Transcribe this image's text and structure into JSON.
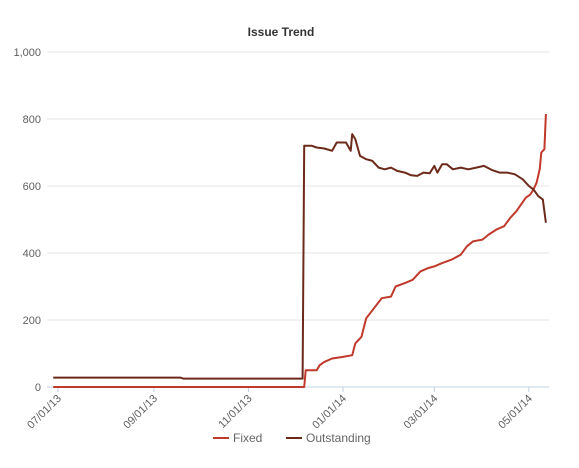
{
  "chart_data": {
    "type": "line",
    "title": "Issue Trend",
    "xlabel": "",
    "ylabel": "",
    "ylim": [
      0,
      1000
    ],
    "yticks": [
      "0",
      "200",
      "400",
      "600",
      "800",
      "1,000"
    ],
    "xticks": [
      "07/01/13",
      "09/01/13",
      "11/01/13",
      "01/01/14",
      "03/01/14",
      "05/01/14"
    ],
    "xlim": [
      "2013-06-24",
      "2014-05-14"
    ],
    "grid": "horizontal",
    "legend_position": "bottom",
    "series": [
      {
        "name": "Fixed",
        "color": "#c0392b",
        "points": [
          [
            "2013-06-28",
            0
          ],
          [
            "2013-12-07",
            0
          ],
          [
            "2013-12-08",
            50
          ],
          [
            "2013-12-15",
            50
          ],
          [
            "2013-12-17",
            65
          ],
          [
            "2013-12-20",
            75
          ],
          [
            "2013-12-25",
            85
          ],
          [
            "2014-01-01",
            90
          ],
          [
            "2014-01-07",
            95
          ],
          [
            "2014-01-09",
            130
          ],
          [
            "2014-01-13",
            150
          ],
          [
            "2014-01-16",
            205
          ],
          [
            "2014-01-21",
            235
          ],
          [
            "2014-01-26",
            265
          ],
          [
            "2014-02-01",
            270
          ],
          [
            "2014-02-04",
            300
          ],
          [
            "2014-02-10",
            310
          ],
          [
            "2014-02-15",
            320
          ],
          [
            "2014-02-20",
            345
          ],
          [
            "2014-02-25",
            355
          ],
          [
            "2014-03-01",
            360
          ],
          [
            "2014-03-06",
            370
          ],
          [
            "2014-03-12",
            380
          ],
          [
            "2014-03-18",
            395
          ],
          [
            "2014-03-22",
            420
          ],
          [
            "2014-03-26",
            435
          ],
          [
            "2014-04-01",
            440
          ],
          [
            "2014-04-05",
            455
          ],
          [
            "2014-04-10",
            470
          ],
          [
            "2014-04-15",
            480
          ],
          [
            "2014-04-19",
            505
          ],
          [
            "2014-04-23",
            525
          ],
          [
            "2014-04-26",
            545
          ],
          [
            "2014-04-29",
            565
          ],
          [
            "2014-05-02",
            575
          ],
          [
            "2014-05-04",
            590
          ],
          [
            "2014-05-06",
            610
          ],
          [
            "2014-05-08",
            650
          ],
          [
            "2014-05-09",
            700
          ],
          [
            "2014-05-11",
            710
          ],
          [
            "2014-05-12",
            815
          ]
        ]
      },
      {
        "name": "Outstanding",
        "color": "#6b2a1a",
        "points": [
          [
            "2013-06-28",
            28
          ],
          [
            "2013-09-18",
            28
          ],
          [
            "2013-09-20",
            25
          ],
          [
            "2013-12-06",
            25
          ],
          [
            "2013-12-07",
            720
          ],
          [
            "2013-12-12",
            720
          ],
          [
            "2013-12-15",
            715
          ],
          [
            "2013-12-20",
            712
          ],
          [
            "2013-12-25",
            705
          ],
          [
            "2013-12-28",
            730
          ],
          [
            "2014-01-03",
            730
          ],
          [
            "2014-01-06",
            705
          ],
          [
            "2014-01-07",
            755
          ],
          [
            "2014-01-09",
            740
          ],
          [
            "2014-01-12",
            690
          ],
          [
            "2014-01-16",
            680
          ],
          [
            "2014-01-20",
            675
          ],
          [
            "2014-01-24",
            655
          ],
          [
            "2014-01-28",
            650
          ],
          [
            "2014-02-01",
            655
          ],
          [
            "2014-02-05",
            645
          ],
          [
            "2014-02-10",
            640
          ],
          [
            "2014-02-14",
            632
          ],
          [
            "2014-02-18",
            630
          ],
          [
            "2014-02-22",
            640
          ],
          [
            "2014-02-26",
            638
          ],
          [
            "2014-03-01",
            660
          ],
          [
            "2014-03-03",
            640
          ],
          [
            "2014-03-06",
            665
          ],
          [
            "2014-03-09",
            665
          ],
          [
            "2014-03-13",
            650
          ],
          [
            "2014-03-18",
            655
          ],
          [
            "2014-03-23",
            650
          ],
          [
            "2014-03-28",
            655
          ],
          [
            "2014-04-02",
            660
          ],
          [
            "2014-04-07",
            648
          ],
          [
            "2014-04-12",
            640
          ],
          [
            "2014-04-17",
            640
          ],
          [
            "2014-04-22",
            635
          ],
          [
            "2014-04-27",
            620
          ],
          [
            "2014-05-01",
            600
          ],
          [
            "2014-05-04",
            590
          ],
          [
            "2014-05-07",
            570
          ],
          [
            "2014-05-10",
            560
          ],
          [
            "2014-05-12",
            490
          ]
        ]
      }
    ]
  }
}
